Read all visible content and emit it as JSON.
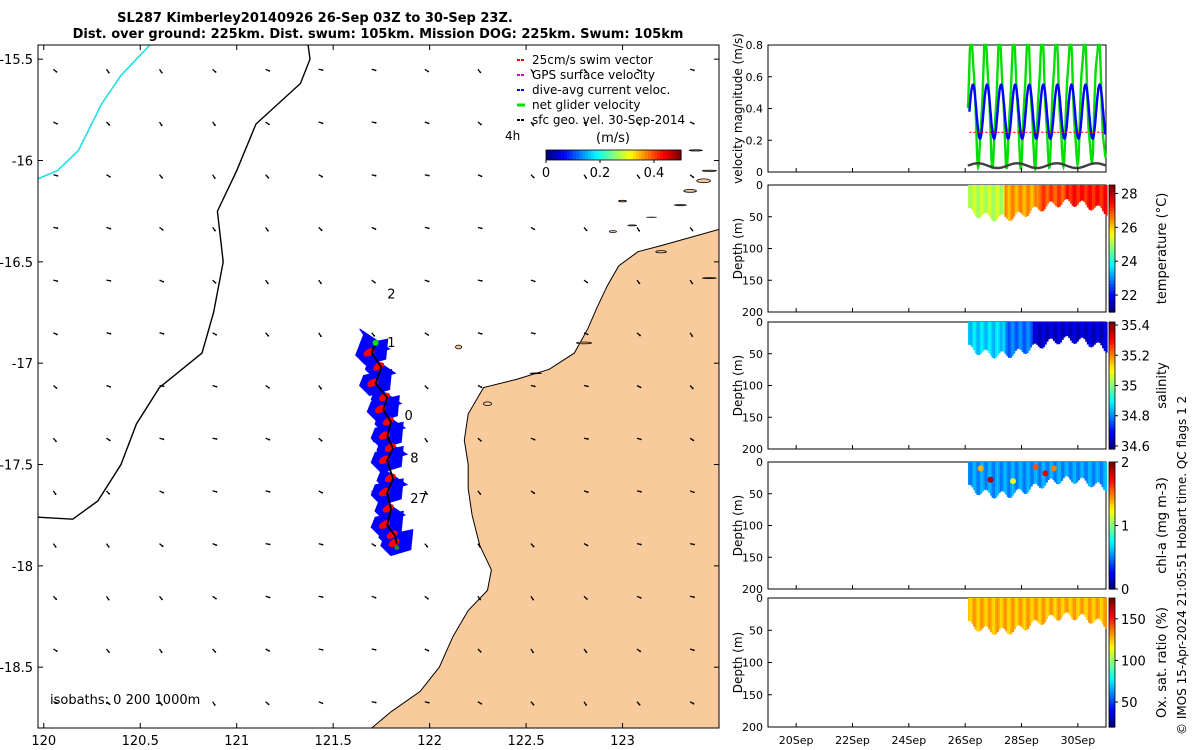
{
  "title": {
    "line1": "SL287 Kimberley20140926 26-Sep 03Z to 30-Sep 23Z.",
    "line2": "Dist. over ground: 225km. Dist. swum: 105km. Mission DOG: 225km. Swum: 105km"
  },
  "credit": "© IMOS 15-Apr-2024 21:05:51 Hobart time. QC flags 1  2",
  "colors": {
    "land": "#f9cb9c",
    "coast": "#000000",
    "cyan_isobath": "#22e0e0",
    "track_fill": "#0000ff",
    "red": "#ff0000",
    "green": "#00e000",
    "blue": "#0000ff",
    "gray": "#404040",
    "magenta": "#cc00cc"
  },
  "chart_data": [
    {
      "id": "map",
      "type": "scatter",
      "title": "Glider track map",
      "xlim": [
        119.97,
        123.5
      ],
      "ylim": [
        -18.8,
        -15.43
      ],
      "xticks": [
        120,
        120.5,
        121,
        121.5,
        122,
        122.5,
        123
      ],
      "yticks": [
        -15.5,
        -16,
        -16.5,
        -17,
        -17.5,
        -18,
        -18.5
      ],
      "xticklabels": [
        "120",
        "120.5",
        "121",
        "121.5",
        "122",
        "122.5",
        "123"
      ],
      "yticklabels": [
        "-15.5",
        "-16",
        "-16.5",
        "-17",
        "-17.5",
        "-18",
        "-18.5"
      ],
      "legend": {
        "items": [
          {
            "label": "25cm/s swim vector",
            "color": "#ff0000"
          },
          {
            "label": "GPS surface velocity",
            "color": "#cc00cc"
          },
          {
            "label": "dive-avg current veloc.",
            "color": "#0000ff"
          },
          {
            "label": "net glider velocity",
            "color": "#00e000"
          },
          {
            "label": "sfc geo. vel. 30-Sep-2014",
            "color": "#000000"
          }
        ],
        "note": "4h",
        "units": "(m/s)",
        "colorbar_ticks": [
          "0",
          "0.2",
          "0.4"
        ],
        "colorbar_range": [
          0,
          0.5
        ]
      },
      "isobaths_label": "isobaths: 0   200  1000m",
      "track_labels": [
        {
          "text": "2",
          "lon": 121.78,
          "lat": -16.68
        },
        {
          "text": "1",
          "lon": 121.78,
          "lat": -16.92
        },
        {
          "text": "0",
          "lon": 121.87,
          "lat": -17.28
        },
        {
          "text": "8",
          "lon": 121.9,
          "lat": -17.49
        },
        {
          "text": "27",
          "lon": 121.9,
          "lat": -17.69
        }
      ],
      "track": [
        [
          121.83,
          -17.89
        ],
        [
          121.82,
          -17.85
        ],
        [
          121.78,
          -17.8
        ],
        [
          121.8,
          -17.72
        ],
        [
          121.78,
          -17.64
        ],
        [
          121.81,
          -17.57
        ],
        [
          121.78,
          -17.48
        ],
        [
          121.81,
          -17.42
        ],
        [
          121.78,
          -17.36
        ],
        [
          121.8,
          -17.29
        ],
        [
          121.76,
          -17.23
        ],
        [
          121.78,
          -17.17
        ],
        [
          121.72,
          -17.1
        ],
        [
          121.75,
          -17.02
        ],
        [
          121.7,
          -16.95
        ],
        [
          121.72,
          -16.9
        ]
      ],
      "coastline": [
        [
          123.5,
          -16.34
        ],
        [
          123.35,
          -16.38
        ],
        [
          123.2,
          -16.42
        ],
        [
          123.08,
          -16.45
        ],
        [
          122.98,
          -16.52
        ],
        [
          122.92,
          -16.62
        ],
        [
          122.87,
          -16.72
        ],
        [
          122.82,
          -16.83
        ],
        [
          122.75,
          -16.95
        ],
        [
          122.62,
          -17.03
        ],
        [
          122.45,
          -17.08
        ],
        [
          122.28,
          -17.12
        ],
        [
          122.2,
          -17.25
        ],
        [
          122.18,
          -17.38
        ],
        [
          122.2,
          -17.5
        ],
        [
          122.2,
          -17.62
        ],
        [
          122.22,
          -17.75
        ],
        [
          122.26,
          -17.9
        ],
        [
          122.32,
          -18.02
        ],
        [
          122.3,
          -18.12
        ],
        [
          122.2,
          -18.22
        ],
        [
          122.12,
          -18.35
        ],
        [
          122.05,
          -18.5
        ],
        [
          121.95,
          -18.62
        ],
        [
          121.8,
          -18.72
        ],
        [
          121.7,
          -18.8
        ]
      ],
      "isobath_black": [
        [
          121.37,
          -15.43
        ],
        [
          121.38,
          -15.5
        ],
        [
          121.33,
          -15.62
        ],
        [
          121.1,
          -15.82
        ],
        [
          121.0,
          -16.05
        ],
        [
          120.9,
          -16.25
        ],
        [
          120.93,
          -16.5
        ],
        [
          120.88,
          -16.75
        ],
        [
          120.82,
          -16.95
        ],
        [
          120.6,
          -17.12
        ],
        [
          120.48,
          -17.3
        ],
        [
          120.4,
          -17.5
        ],
        [
          120.28,
          -17.68
        ],
        [
          120.15,
          -17.77
        ],
        [
          119.97,
          -17.76
        ]
      ],
      "isobath_cyan": [
        [
          120.55,
          -15.43
        ],
        [
          120.4,
          -15.58
        ],
        [
          120.3,
          -15.72
        ],
        [
          120.18,
          -15.95
        ],
        [
          120.07,
          -16.05
        ],
        [
          119.97,
          -16.09
        ]
      ]
    },
    {
      "id": "velocity",
      "type": "line",
      "ylabel": "velocity magnitude (m/s)",
      "ylim": [
        0,
        0.8
      ],
      "yticks": [
        0,
        0.2,
        0.4,
        0.6,
        0.8
      ],
      "yticklabels": [
        "0",
        "0.2",
        "0.4",
        "0.6",
        "0.8"
      ],
      "xlim_day": [
        19,
        31
      ],
      "series": [
        {
          "name": "net glider velocity",
          "color": "#00e000",
          "t_start": 26.1,
          "t_end": 30.98,
          "base": 0.45,
          "amp": 0.38,
          "period": 0.5
        },
        {
          "name": "dive-avg current veloc.",
          "color": "#0000ff",
          "t_start": 26.15,
          "t_end": 30.98,
          "base": 0.38,
          "amp": 0.17,
          "period": 0.5
        },
        {
          "name": "swim speed",
          "color": "#ff0000",
          "t_start": 26.15,
          "t_end": 30.98,
          "value": 0.25
        },
        {
          "name": "sfc geo. vel.",
          "color": "#404040",
          "t_start": 26.1,
          "t_end": 30.98,
          "base": 0.04,
          "amp": 0.015,
          "period": 1.4
        }
      ]
    },
    {
      "id": "temperature",
      "type": "heatmap",
      "ylabel": "Depth (m)",
      "cbar_label": "temperature (°C)",
      "ylim": [
        0,
        200
      ],
      "yticks": [
        0,
        50,
        100,
        150,
        200
      ],
      "clim": [
        21,
        28.5
      ],
      "cbar_ticks": [
        22,
        24,
        26,
        28
      ],
      "t_start": 26.1,
      "t_end": 31.0,
      "segments": [
        {
          "t0": 26.1,
          "t1": 27.4,
          "value": 25.2
        },
        {
          "t0": 27.4,
          "t1": 28.6,
          "value": 26.4
        },
        {
          "t0": 28.6,
          "t1": 29.6,
          "value": 27.0
        },
        {
          "t0": 29.6,
          "t1": 31.0,
          "value": 27.4
        }
      ]
    },
    {
      "id": "salinity",
      "type": "heatmap",
      "ylabel": "Depth (m)",
      "cbar_label": "salinity",
      "ylim": [
        0,
        200
      ],
      "yticks": [
        0,
        50,
        100,
        150,
        200
      ],
      "clim": [
        34.58,
        35.42
      ],
      "cbar_ticks": [
        34.6,
        34.8,
        35,
        35.2,
        35.4
      ],
      "t_start": 26.1,
      "t_end": 31.0,
      "segments": [
        {
          "t0": 26.1,
          "t1": 27.4,
          "value": 34.86
        },
        {
          "t0": 27.4,
          "t1": 28.4,
          "value": 34.78
        },
        {
          "t0": 28.4,
          "t1": 31.0,
          "value": 34.64
        }
      ]
    },
    {
      "id": "chla",
      "type": "heatmap",
      "ylabel": "Depth (m)",
      "cbar_label": "chl-a (mg m-3)",
      "ylim": [
        0,
        200
      ],
      "yticks": [
        0,
        50,
        100,
        150,
        200
      ],
      "clim": [
        0,
        2
      ],
      "cbar_ticks": [
        0,
        1,
        2
      ],
      "t_start": 26.1,
      "t_end": 31.0,
      "segments": [
        {
          "t0": 26.1,
          "t1": 31.0,
          "value": 0.55
        }
      ],
      "hotspots": [
        {
          "t": 26.55,
          "depth": 10,
          "value": 1.4
        },
        {
          "t": 26.9,
          "depth": 28,
          "value": 1.9
        },
        {
          "t": 27.7,
          "depth": 30,
          "value": 1.2
        },
        {
          "t": 28.5,
          "depth": 8,
          "value": 1.6
        },
        {
          "t": 28.85,
          "depth": 18,
          "value": 1.8
        },
        {
          "t": 29.15,
          "depth": 10,
          "value": 1.5
        }
      ]
    },
    {
      "id": "oxygen",
      "type": "heatmap",
      "ylabel": "Depth (m)",
      "cbar_label": "Ox. sat. ratio (%)",
      "ylim": [
        0,
        200
      ],
      "yticks": [
        0,
        50,
        100,
        150,
        200
      ],
      "clim": [
        20,
        175
      ],
      "cbar_ticks": [
        50,
        100,
        150
      ],
      "t_start": 26.1,
      "t_end": 31.0,
      "segments": [
        {
          "t0": 26.1,
          "t1": 31.0,
          "value": 128
        }
      ],
      "xticklabels": [
        "20Sep",
        "22Sep",
        "24Sep",
        "26Sep",
        "28Sep",
        "30Sep"
      ],
      "xtick_days": [
        20,
        22,
        24,
        26,
        28,
        30
      ]
    }
  ]
}
